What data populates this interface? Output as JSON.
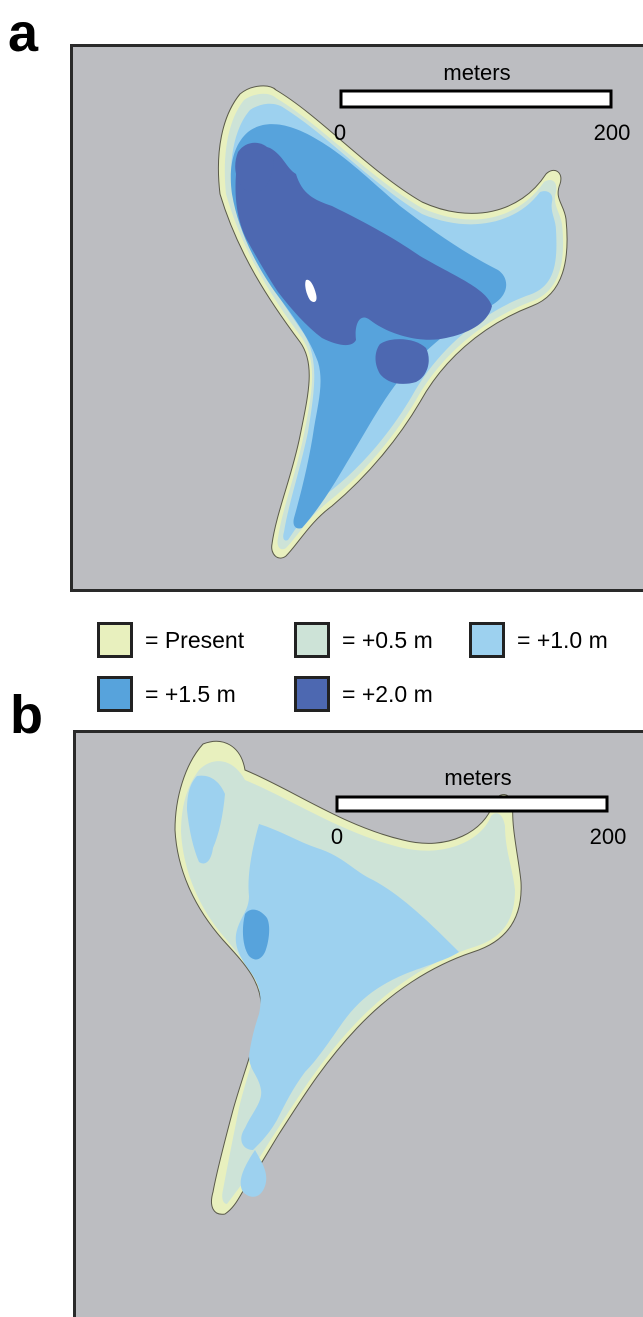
{
  "panels": [
    {
      "letter": "a",
      "scale_bar": {
        "title": "meters",
        "min_label": "0",
        "max_label": "200"
      }
    },
    {
      "letter": "b",
      "scale_bar": {
        "title": "meters",
        "min_label": "0",
        "max_label": "200"
      }
    }
  ],
  "legend": [
    {
      "label": "= Present",
      "color": "#e8f0be"
    },
    {
      "label": "= +0.5 m",
      "color": "#cde3d7"
    },
    {
      "label": "= +1.0 m",
      "color": "#9dd1ef"
    },
    {
      "label": "= +1.5 m",
      "color": "#57a3dc"
    },
    {
      "label": "= +2.0 m",
      "color": "#4d68b1"
    }
  ],
  "colors": {
    "water": "#bcbdc1",
    "frame": "#2a2a2a",
    "highest_point": "#ffffff"
  }
}
